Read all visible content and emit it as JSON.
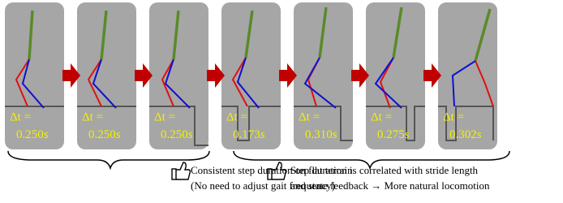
{
  "panels": [
    {
      "delta": "Δt =",
      "value": "0.250",
      "unit": "s"
    },
    {
      "delta": "Δt =",
      "value": "0.250",
      "unit": "s"
    },
    {
      "delta": "Δt =",
      "value": "0.250",
      "unit": "s"
    },
    {
      "delta": "Δt =",
      "value": "0.173",
      "unit": "s"
    },
    {
      "delta": "Δt =",
      "value": "0.310",
      "unit": "s"
    },
    {
      "delta": "Δt =",
      "value": "0.275",
      "unit": "s"
    },
    {
      "delta": "Δt =",
      "value": "0.302",
      "unit": "s"
    }
  ],
  "captions": {
    "left": [
      "Consistent step duration on flat terrain",
      "(No need to adjust gait frequency)"
    ],
    "right": [
      "Step duration is correlated with stride length",
      "and state feedback → More natural locomotion"
    ]
  }
}
